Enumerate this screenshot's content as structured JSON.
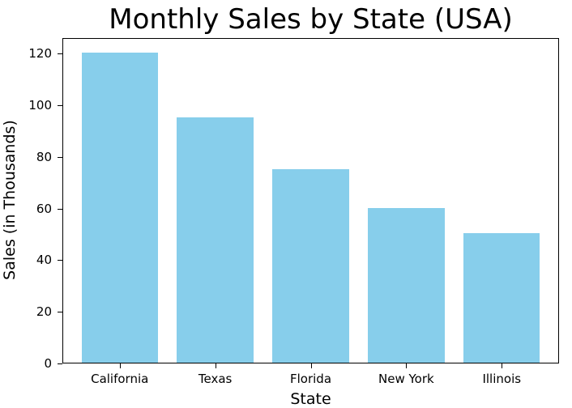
{
  "chart_data": {
    "type": "bar",
    "title": "Monthly Sales by State (USA)",
    "xlabel": "State",
    "ylabel": "Sales (in Thousands)",
    "categories": [
      "California",
      "Texas",
      "Florida",
      "New York",
      "Illinois"
    ],
    "values": [
      120,
      95,
      75,
      60,
      50
    ],
    "ylim": [
      0,
      126
    ],
    "yticks": [
      0,
      20,
      40,
      60,
      80,
      100,
      120
    ],
    "grid": false,
    "legend": null,
    "bar_color": "#87ceeb"
  }
}
